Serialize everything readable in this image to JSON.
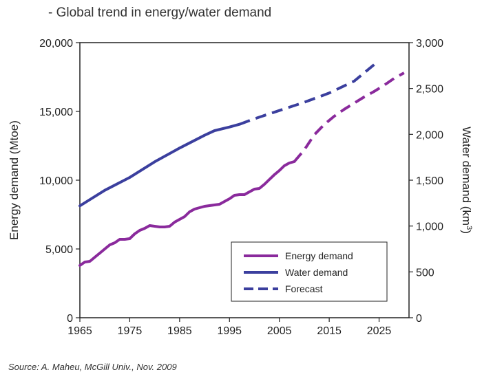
{
  "title": "- Global trend in energy/water demand",
  "source": "Source: A. Maheu, McGill Univ., Nov. 2009",
  "colors": {
    "energy": "#8a2a9c",
    "water": "#3b3f9e",
    "axis": "#222222"
  },
  "chart_data": {
    "type": "line",
    "title": "",
    "xlabel": "",
    "ylabel": "Energy demand (Mtoe)",
    "y2label_main": "Water demand (km",
    "y2label_sup": "3",
    "y2label_close": ")",
    "xlim": [
      1965,
      2031
    ],
    "ylim": [
      0,
      20000
    ],
    "y2lim": [
      0,
      3000
    ],
    "xticks": [
      "1965",
      "1975",
      "1985",
      "1995",
      "2005",
      "2015",
      "2025"
    ],
    "yticks": [
      "0",
      "5,000",
      "10,000",
      "15,000",
      "20,000"
    ],
    "y2ticks": [
      "0",
      "500",
      "1,000",
      "1,500",
      "2,000",
      "2,500",
      "3,000"
    ],
    "grid": false,
    "legend_position": "bottom-right",
    "legend": [
      {
        "label": "Energy demand",
        "style": "solid",
        "series": "energy"
      },
      {
        "label": "Water demand",
        "style": "solid",
        "series": "water"
      },
      {
        "label": "Forecast",
        "style": "dashed",
        "series": "water"
      }
    ],
    "series": [
      {
        "name": "Energy demand",
        "axis": "left",
        "x": [
          1965,
          1966,
          1967,
          1968,
          1969,
          1970,
          1971,
          1972,
          1973,
          1974,
          1975,
          1976,
          1977,
          1978,
          1979,
          1980,
          1981,
          1982,
          1983,
          1984,
          1985,
          1986,
          1987,
          1988,
          1989,
          1990,
          1991,
          1992,
          1993,
          1994,
          1995,
          1996,
          1997,
          1998,
          1999,
          2000,
          2001,
          2002,
          2003,
          2004,
          2005,
          2006,
          2007,
          2008
        ],
        "values": [
          3800,
          4050,
          4100,
          4400,
          4700,
          5000,
          5300,
          5450,
          5700,
          5700,
          5750,
          6100,
          6350,
          6500,
          6700,
          6650,
          6600,
          6600,
          6650,
          6950,
          7150,
          7350,
          7700,
          7900,
          8000,
          8100,
          8150,
          8200,
          8250,
          8450,
          8650,
          8900,
          8950,
          8950,
          9150,
          9350,
          9400,
          9700,
          10050,
          10400,
          10700,
          11050,
          11250,
          11350
        ]
      },
      {
        "name": "Energy demand forecast",
        "axis": "left",
        "dashed": true,
        "x": [
          2008,
          2010,
          2012,
          2014,
          2016,
          2018,
          2020,
          2022,
          2024,
          2026,
          2028,
          2030
        ],
        "values": [
          11350,
          12200,
          13300,
          14050,
          14650,
          15150,
          15600,
          16050,
          16450,
          16900,
          17400,
          17800
        ]
      },
      {
        "name": "Water demand",
        "axis": "right",
        "x": [
          1965,
          1970,
          1975,
          1980,
          1985,
          1990,
          1992,
          1995,
          1997
        ],
        "values": [
          1220,
          1390,
          1530,
          1700,
          1850,
          1990,
          2040,
          2080,
          2110
        ]
      },
      {
        "name": "Water demand forecast",
        "axis": "right",
        "dashed": true,
        "x": [
          1997,
          2000,
          2005,
          2010,
          2015,
          2020,
          2024
        ],
        "values": [
          2110,
          2170,
          2260,
          2350,
          2450,
          2580,
          2760
        ]
      }
    ]
  }
}
